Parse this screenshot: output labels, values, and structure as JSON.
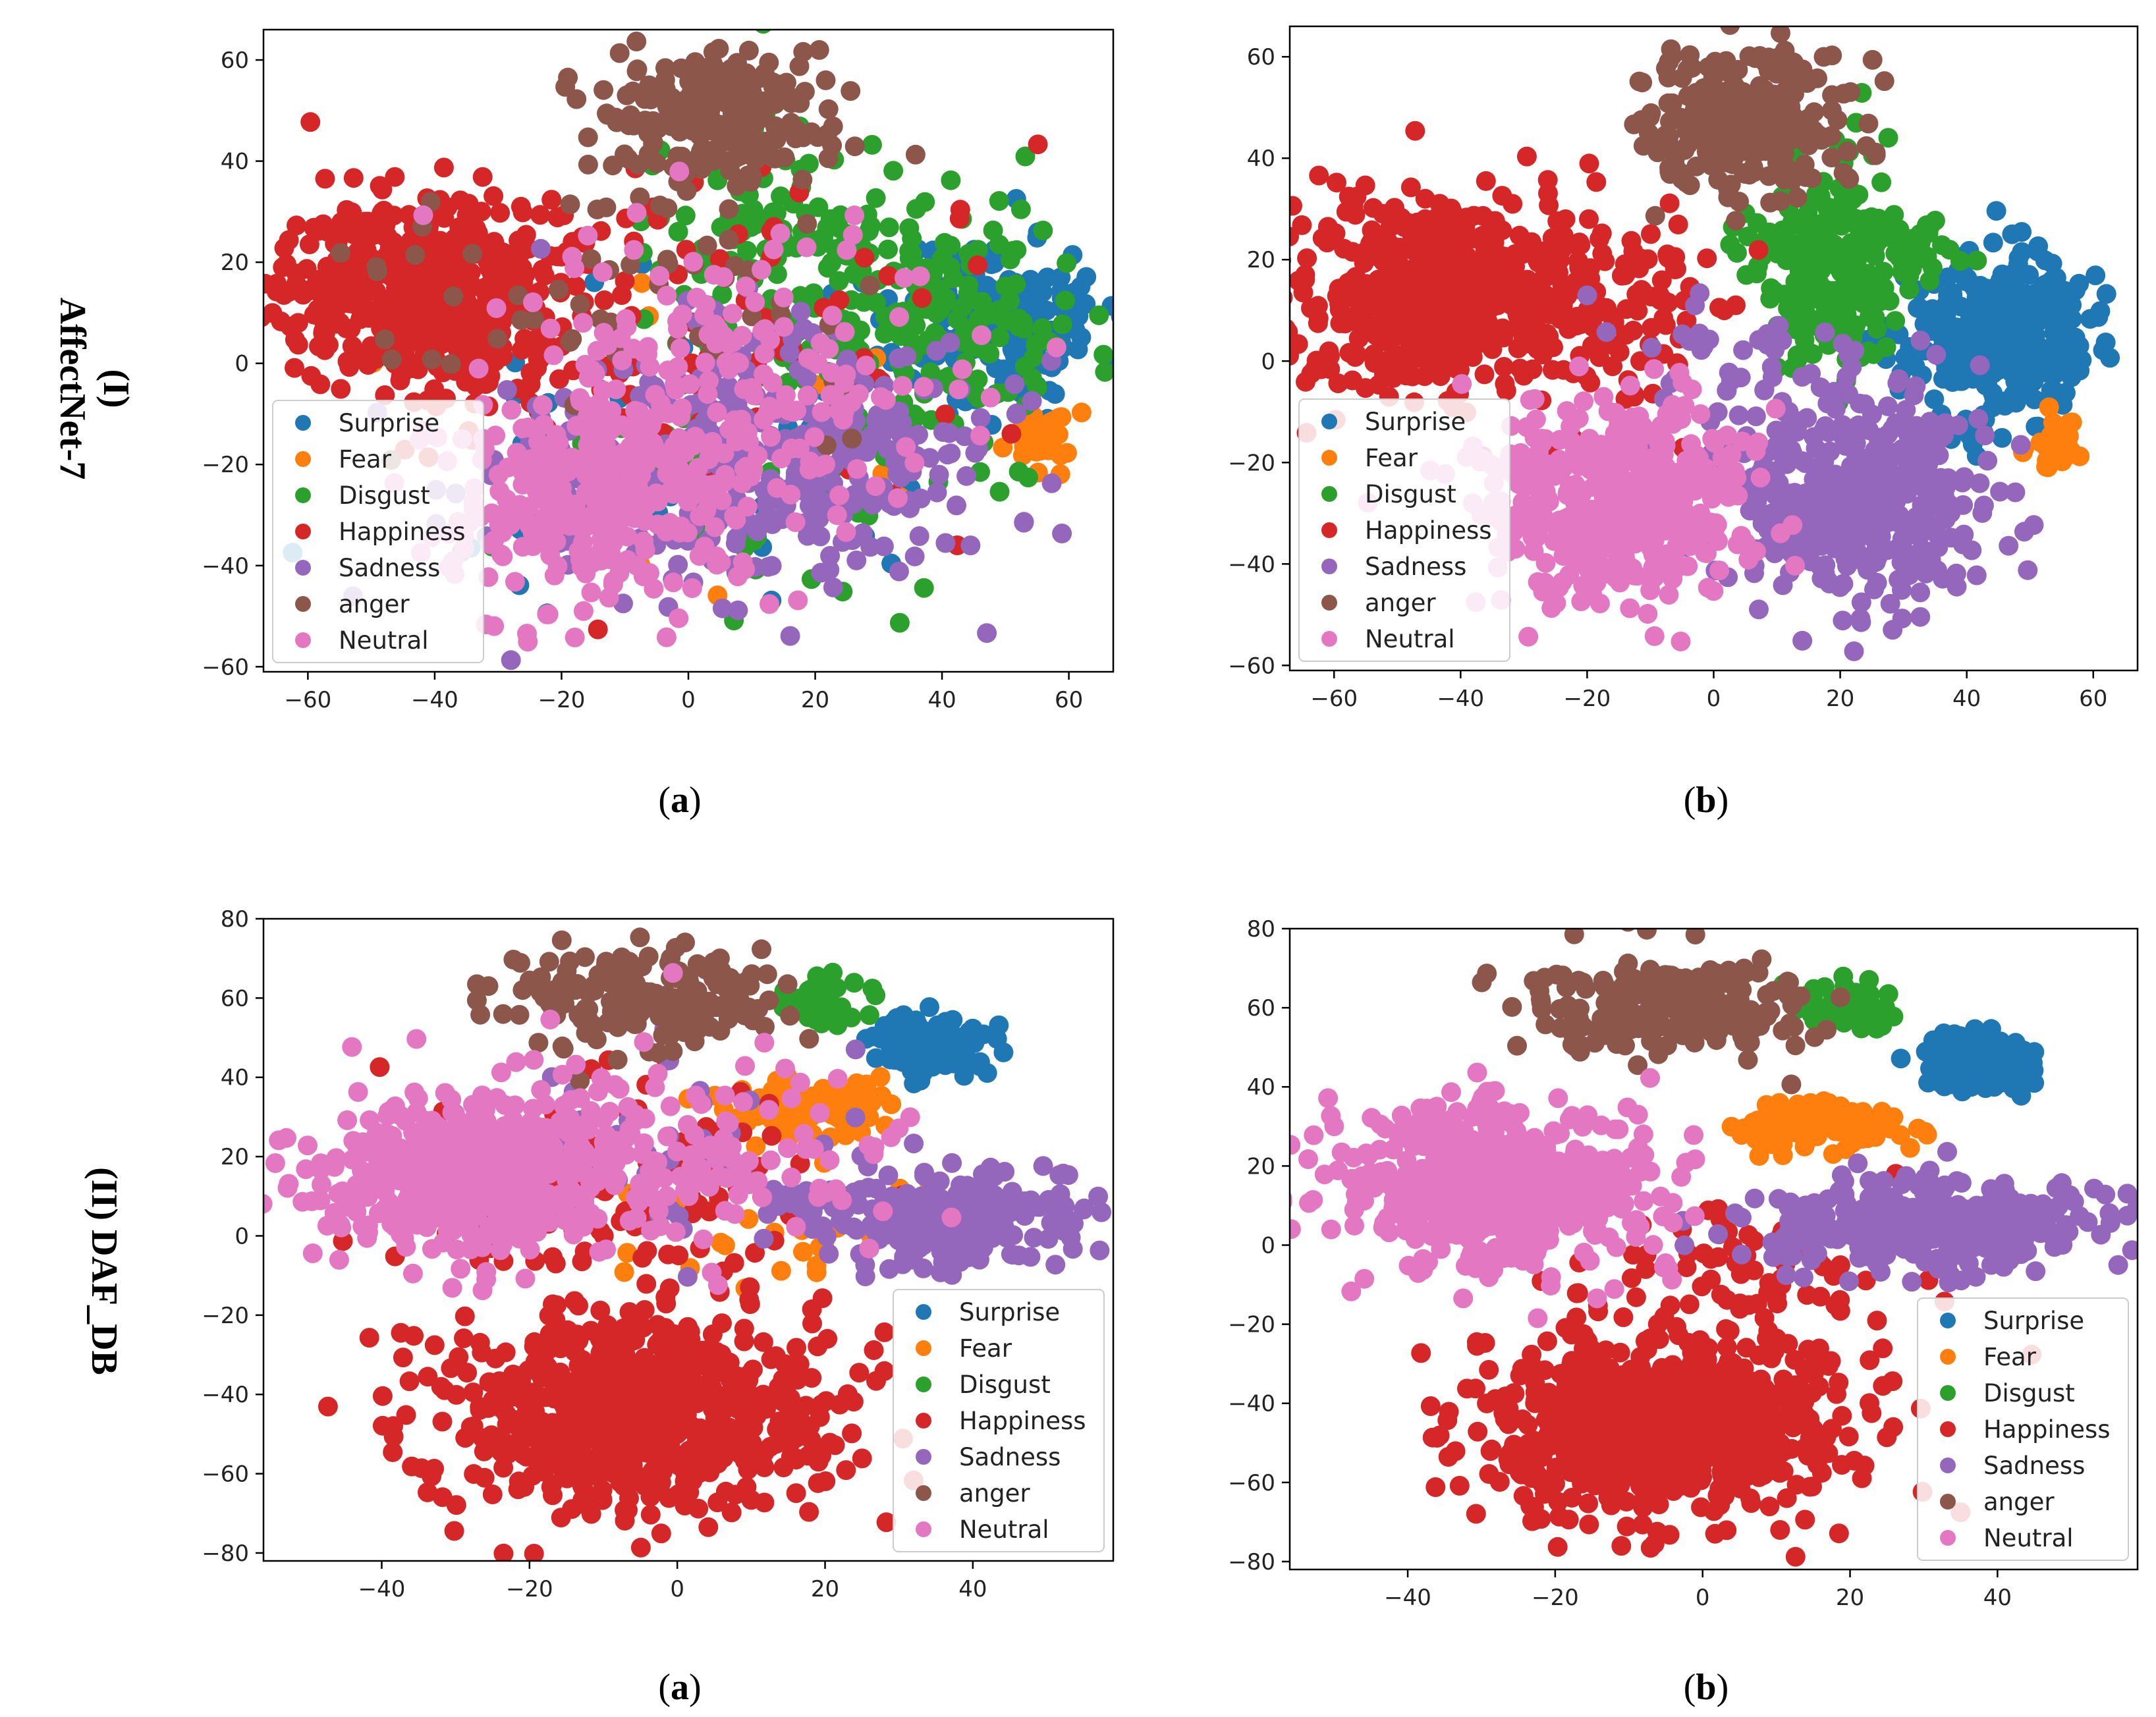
{
  "figure": {
    "row_labels": [
      {
        "id": "I",
        "line1": "(I)",
        "line2": "AffectNet-7"
      },
      {
        "id": "II",
        "line1": "(II) DAF_DB",
        "line2": ""
      }
    ],
    "captions": [
      {
        "letter": "a"
      },
      {
        "letter": "b"
      },
      {
        "letter": "a"
      },
      {
        "letter": "b"
      }
    ]
  },
  "legend_labels": [
    "Surprise",
    "Fear",
    "Disgust",
    "Happiness",
    "Sadness",
    "anger",
    "Neutral"
  ],
  "colors": {
    "Surprise": "#1f77b4",
    "Fear": "#ff7f0e",
    "Disgust": "#2ca02c",
    "Happiness": "#d62728",
    "Sadness": "#9467bd",
    "anger": "#8c564b",
    "Neutral": "#e377c2"
  },
  "chart_data": [
    {
      "id": "affectnet-a",
      "type": "scatter",
      "title": "",
      "xlabel": "",
      "ylabel": "",
      "xlim": [
        -67,
        67
      ],
      "ylim": [
        -61,
        66
      ],
      "xticks": [
        -60,
        -40,
        -20,
        0,
        20,
        40,
        60
      ],
      "yticks": [
        -60,
        -40,
        -20,
        0,
        20,
        40,
        60
      ],
      "legend_position": "lower-left",
      "seed": 11,
      "clusters": [
        {
          "class": "Surprise",
          "center": [
            50,
            8
          ],
          "spread": [
            8,
            9
          ],
          "count": 170
        },
        {
          "class": "Surprise",
          "center": [
            5,
            -10
          ],
          "spread": [
            25,
            16
          ],
          "count": 50
        },
        {
          "class": "Fear",
          "center": [
            55,
            -15
          ],
          "spread": [
            3,
            3
          ],
          "count": 30
        },
        {
          "class": "Fear",
          "center": [
            0,
            -5
          ],
          "spread": [
            25,
            20
          ],
          "count": 12
        },
        {
          "class": "Disgust",
          "center": [
            35,
            12
          ],
          "spread": [
            14,
            11
          ],
          "count": 200
        },
        {
          "class": "Disgust",
          "center": [
            10,
            30
          ],
          "spread": [
            8,
            12
          ],
          "count": 90
        },
        {
          "class": "Disgust",
          "center": [
            20,
            -20
          ],
          "spread": [
            18,
            14
          ],
          "count": 70
        },
        {
          "class": "Happiness",
          "center": [
            -42,
            14
          ],
          "spread": [
            11,
            9
          ],
          "count": 520
        },
        {
          "class": "Happiness",
          "center": [
            -5,
            5
          ],
          "spread": [
            22,
            18
          ],
          "count": 140
        },
        {
          "class": "Sadness",
          "center": [
            20,
            -18
          ],
          "spread": [
            14,
            12
          ],
          "count": 280
        },
        {
          "class": "Sadness",
          "center": [
            -10,
            -25
          ],
          "spread": [
            16,
            12
          ],
          "count": 100
        },
        {
          "class": "anger",
          "center": [
            5,
            48
          ],
          "spread": [
            9,
            7
          ],
          "count": 240
        },
        {
          "class": "anger",
          "center": [
            -10,
            15
          ],
          "spread": [
            25,
            18
          ],
          "count": 60
        },
        {
          "class": "Neutral",
          "center": [
            -15,
            -28
          ],
          "spread": [
            12,
            10
          ],
          "count": 290
        },
        {
          "class": "Neutral",
          "center": [
            5,
            -5
          ],
          "spread": [
            20,
            15
          ],
          "count": 210
        }
      ]
    },
    {
      "id": "affectnet-b",
      "type": "scatter",
      "title": "",
      "xlabel": "",
      "ylabel": "",
      "xlim": [
        -67,
        67
      ],
      "ylim": [
        -61,
        66
      ],
      "xticks": [
        -60,
        -40,
        -20,
        0,
        20,
        40,
        60
      ],
      "yticks": [
        -60,
        -40,
        -20,
        0,
        20,
        40,
        60
      ],
      "legend_position": "lower-left",
      "seed": 23,
      "clusters": [
        {
          "class": "Surprise",
          "center": [
            45,
            5
          ],
          "spread": [
            7,
            8
          ],
          "count": 330
        },
        {
          "class": "Fear",
          "center": [
            54,
            -16
          ],
          "spread": [
            2.5,
            2.5
          ],
          "count": 35
        },
        {
          "class": "Disgust",
          "center": [
            17,
            18
          ],
          "spread": [
            6,
            11
          ],
          "count": 240
        },
        {
          "class": "Disgust",
          "center": [
            30,
            22
          ],
          "spread": [
            4,
            3
          ],
          "count": 40
        },
        {
          "class": "Happiness",
          "center": [
            -42,
            13
          ],
          "spread": [
            12,
            10
          ],
          "count": 560
        },
        {
          "class": "Happiness",
          "center": [
            -12,
            8
          ],
          "spread": [
            8,
            12
          ],
          "count": 90
        },
        {
          "class": "Sadness",
          "center": [
            23,
            -28
          ],
          "spread": [
            10,
            9
          ],
          "count": 430
        },
        {
          "class": "Sadness",
          "center": [
            5,
            -5
          ],
          "spread": [
            10,
            8
          ],
          "count": 60
        },
        {
          "class": "anger",
          "center": [
            5,
            48
          ],
          "spread": [
            8,
            7
          ],
          "count": 280
        },
        {
          "class": "Neutral",
          "center": [
            -15,
            -28
          ],
          "spread": [
            10,
            10
          ],
          "count": 440
        }
      ]
    },
    {
      "id": "dafdb-a",
      "type": "scatter",
      "title": "",
      "xlabel": "",
      "ylabel": "",
      "xlim": [
        -56,
        59
      ],
      "ylim": [
        -82,
        80
      ],
      "xticks": [
        -40,
        -20,
        0,
        20,
        40
      ],
      "yticks": [
        -80,
        -60,
        -40,
        -20,
        0,
        20,
        40,
        60,
        80
      ],
      "legend_position": "lower-right",
      "seed": 37,
      "clusters": [
        {
          "class": "Surprise",
          "center": [
            35,
            48
          ],
          "spread": [
            4,
            4
          ],
          "count": 90
        },
        {
          "class": "Fear",
          "center": [
            17,
            33
          ],
          "spread": [
            5,
            4
          ],
          "count": 110
        },
        {
          "class": "Fear",
          "center": [
            10,
            5
          ],
          "spread": [
            12,
            10
          ],
          "count": 30
        },
        {
          "class": "Disgust",
          "center": [
            20,
            60
          ],
          "spread": [
            3,
            3
          ],
          "count": 35
        },
        {
          "class": "Happiness",
          "center": [
            -5,
            -45
          ],
          "spread": [
            13,
            12
          ],
          "count": 720
        },
        {
          "class": "Happiness",
          "center": [
            -10,
            10
          ],
          "spread": [
            15,
            15
          ],
          "count": 120
        },
        {
          "class": "Sadness",
          "center": [
            35,
            5
          ],
          "spread": [
            10,
            6
          ],
          "count": 280
        },
        {
          "class": "Sadness",
          "center": [
            -5,
            20
          ],
          "spread": [
            15,
            12
          ],
          "count": 40
        },
        {
          "class": "anger",
          "center": [
            -5,
            60
          ],
          "spread": [
            9,
            6
          ],
          "count": 190
        },
        {
          "class": "Neutral",
          "center": [
            -28,
            15
          ],
          "spread": [
            10,
            10
          ],
          "count": 550
        },
        {
          "class": "Neutral",
          "center": [
            0,
            20
          ],
          "spread": [
            14,
            12
          ],
          "count": 120
        }
      ]
    },
    {
      "id": "dafdb-b",
      "type": "scatter",
      "title": "",
      "xlabel": "",
      "ylabel": "",
      "xlim": [
        -56,
        59
      ],
      "ylim": [
        -82,
        80
      ],
      "xticks": [
        -40,
        -20,
        0,
        20,
        40
      ],
      "yticks": [
        -80,
        -60,
        -40,
        -20,
        0,
        20,
        40,
        60,
        80
      ],
      "legend_position": "lower-right",
      "seed": 51,
      "clusters": [
        {
          "class": "Surprise",
          "center": [
            37,
            46
          ],
          "spread": [
            4,
            4
          ],
          "count": 120
        },
        {
          "class": "Fear",
          "center": [
            16,
            30
          ],
          "spread": [
            6,
            3
          ],
          "count": 120
        },
        {
          "class": "Disgust",
          "center": [
            20,
            60
          ],
          "spread": [
            3,
            3
          ],
          "count": 45
        },
        {
          "class": "Happiness",
          "center": [
            -5,
            -45
          ],
          "spread": [
            13,
            12
          ],
          "count": 780
        },
        {
          "class": "Happiness",
          "center": [
            5,
            -5
          ],
          "spread": [
            12,
            8
          ],
          "count": 60
        },
        {
          "class": "Sadness",
          "center": [
            30,
            5
          ],
          "spread": [
            11,
            6
          ],
          "count": 330
        },
        {
          "class": "anger",
          "center": [
            -5,
            60
          ],
          "spread": [
            9,
            6
          ],
          "count": 220
        },
        {
          "class": "Neutral",
          "center": [
            -28,
            15
          ],
          "spread": [
            10,
            10
          ],
          "count": 600
        }
      ]
    }
  ]
}
